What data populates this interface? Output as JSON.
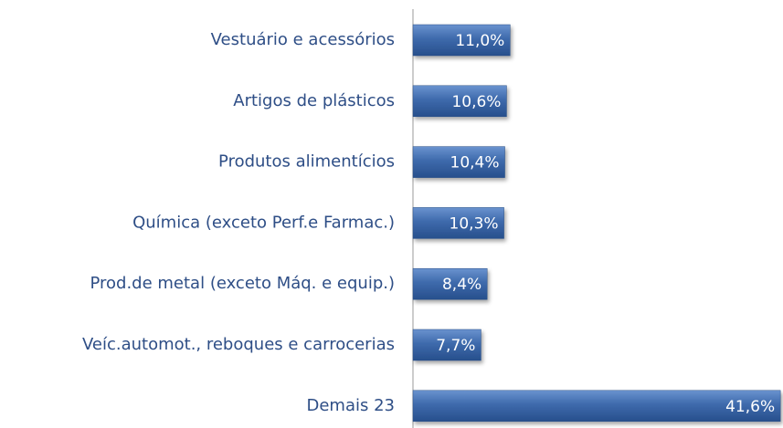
{
  "chart_data": {
    "type": "hbar",
    "categories": [
      "Vestuário e acessórios",
      "Artigos de plásticos",
      "Produtos alimentícios",
      "Química (exceto Perf.e Farmac.)",
      "Prod.de metal (exceto Máq. e equip.)",
      "Veíc.automot., reboques e carrocerias",
      "Demais 23"
    ],
    "values": [
      11.0,
      10.6,
      10.4,
      10.3,
      8.4,
      7.7,
      41.6
    ],
    "value_labels": [
      "11,0%",
      "10,6%",
      "10,4%",
      "10,3%",
      "8,4%",
      "7,7%",
      "41,6%"
    ],
    "color": "#3a66a8",
    "xlim": [
      0,
      42
    ]
  }
}
